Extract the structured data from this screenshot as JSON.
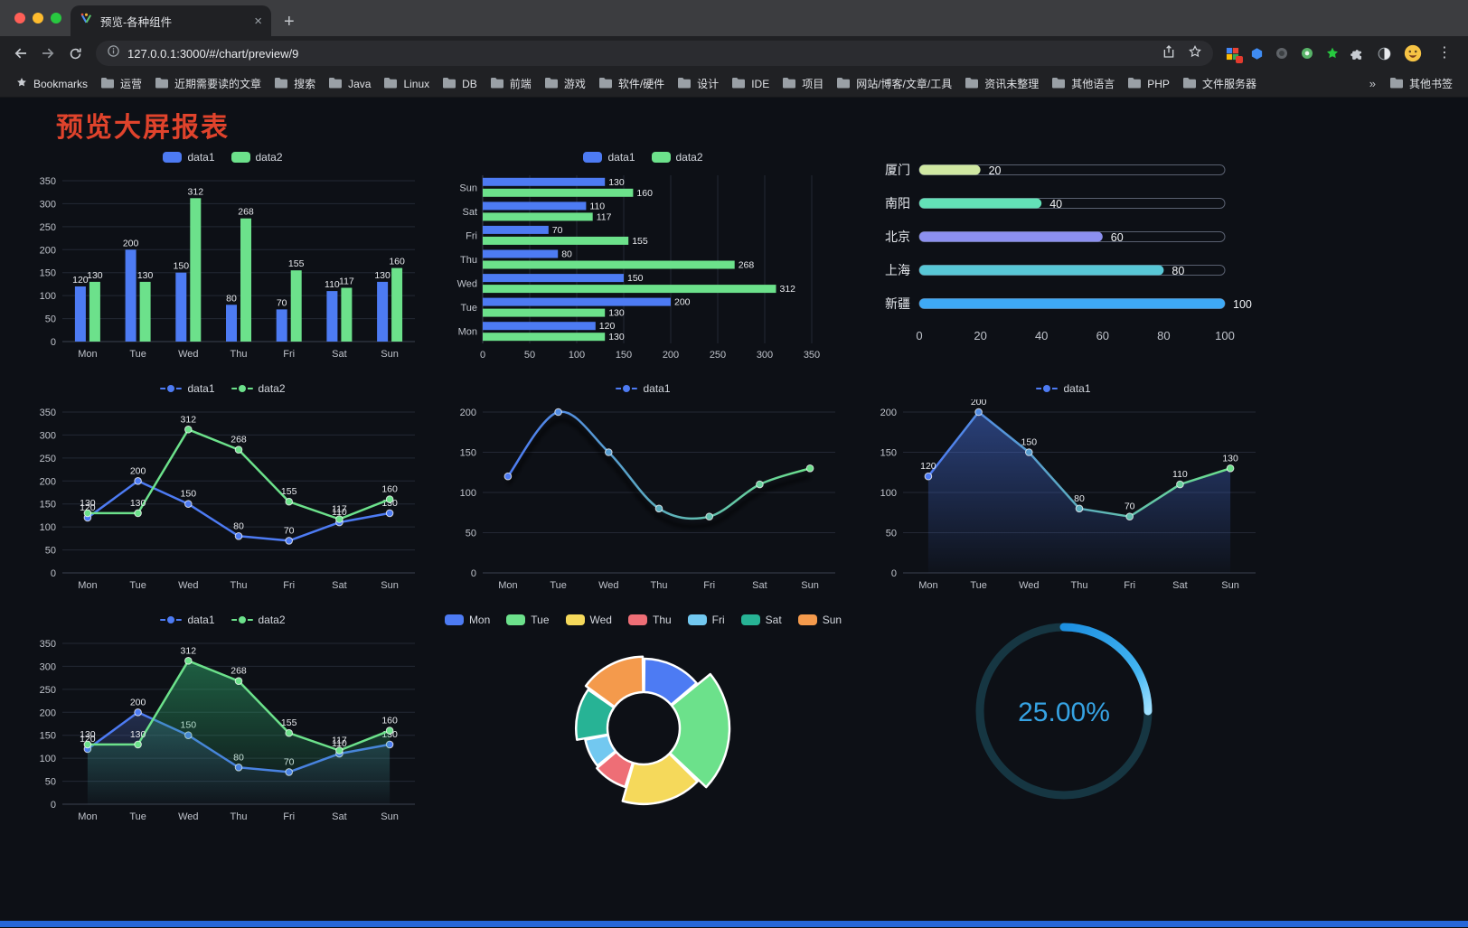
{
  "browser": {
    "tab": {
      "title": "预览-各种组件"
    },
    "glyphs": {
      "close": "×",
      "new_tab": "+",
      "more": "⋮",
      "overflow": "»"
    },
    "address": {
      "url": "127.0.0.1:3000/#/chart/preview/9"
    },
    "bookmarks_first": "Bookmarks",
    "bookmarks": [
      "运营",
      "近期需要读的文章",
      "搜索",
      "Java",
      "Linux",
      "DB",
      "前端",
      "游戏",
      "软件/硬件",
      "设计",
      "IDE",
      "项目",
      "网站/博客/文章/工具",
      "资讯未整理",
      "其他语言",
      "PHP",
      "文件服务器"
    ],
    "other_bookmarks": "其他书签"
  },
  "page": {
    "title": "预览大屏报表",
    "title_color": "#e0432c",
    "background": "#0d1016",
    "footer_color": "#2667d9"
  },
  "chart_data": [
    {
      "id": "grouped-bar",
      "type": "bar",
      "categories": [
        "Mon",
        "Tue",
        "Wed",
        "Thu",
        "Fri",
        "Sat",
        "Sun"
      ],
      "series": [
        {
          "name": "data1",
          "color": "#4d7bf3",
          "values": [
            120,
            200,
            150,
            80,
            70,
            110,
            130
          ]
        },
        {
          "name": "data2",
          "color": "#6ce18b",
          "values": [
            130,
            130,
            312,
            268,
            155,
            117,
            160
          ]
        }
      ],
      "ylim": [
        0,
        350
      ],
      "ystep": 50,
      "legend": true,
      "value_labels": true
    },
    {
      "id": "grouped-horizontal-bar",
      "type": "hbar",
      "categories": [
        "Mon",
        "Tue",
        "Wed",
        "Thu",
        "Fri",
        "Sat",
        "Sun"
      ],
      "series": [
        {
          "name": "data1",
          "color": "#4d7bf3",
          "values": [
            120,
            200,
            150,
            80,
            70,
            110,
            130
          ]
        },
        {
          "name": "data2",
          "color": "#6ce18b",
          "values": [
            130,
            130,
            312,
            268,
            155,
            117,
            160
          ]
        }
      ],
      "xlim": [
        0,
        350
      ],
      "xstep": 50,
      "legend": true,
      "value_labels": true
    },
    {
      "id": "capsule-bars",
      "type": "capsule",
      "max": 100,
      "rows": [
        {
          "label": "厦门",
          "value": 20,
          "color": "#d0e8a2"
        },
        {
          "label": "南阳",
          "value": 40,
          "color": "#63e2b7"
        },
        {
          "label": "北京",
          "value": 60,
          "color": "#8c90f0"
        },
        {
          "label": "上海",
          "value": 80,
          "color": "#58c7d6"
        },
        {
          "label": "新疆",
          "value": 100,
          "color": "#3ea9f5"
        }
      ],
      "xticks": [
        0,
        20,
        40,
        60,
        80,
        100
      ]
    },
    {
      "id": "two-line",
      "type": "line",
      "categories": [
        "Mon",
        "Tue",
        "Wed",
        "Thu",
        "Fri",
        "Sat",
        "Sun"
      ],
      "series": [
        {
          "name": "data1",
          "color": "#4d7bf3",
          "values": [
            120,
            200,
            150,
            80,
            70,
            110,
            130
          ]
        },
        {
          "name": "data2",
          "color": "#6ce18b",
          "values": [
            130,
            130,
            312,
            268,
            155,
            117,
            160
          ]
        }
      ],
      "ylim": [
        0,
        350
      ],
      "ystep": 50,
      "legend": true,
      "value_labels": true
    },
    {
      "id": "gradient-smooth-line",
      "type": "line",
      "categories": [
        "Mon",
        "Tue",
        "Wed",
        "Thu",
        "Fri",
        "Sat",
        "Sun"
      ],
      "series": [
        {
          "name": "data1",
          "color": "#4d7bf3",
          "gradient": [
            "#4d7bf3",
            "#6ce18b"
          ],
          "values": [
            120,
            200,
            150,
            80,
            70,
            110,
            130
          ],
          "smooth": true,
          "shadow": true
        }
      ],
      "ylim": [
        0,
        200
      ],
      "ystep": 50,
      "legend": true,
      "value_labels": false
    },
    {
      "id": "area-line",
      "type": "line",
      "categories": [
        "Mon",
        "Tue",
        "Wed",
        "Thu",
        "Fri",
        "Sat",
        "Sun"
      ],
      "series": [
        {
          "name": "data1",
          "color": "#4d7bf3",
          "gradient": [
            "#4d7bf3",
            "#6ce18b"
          ],
          "values": [
            120,
            200,
            150,
            80,
            70,
            110,
            130
          ],
          "area": "#4d7bf3",
          "area_op": 0.45
        }
      ],
      "ylim": [
        0,
        200
      ],
      "ystep": 50,
      "legend": true,
      "value_labels": true
    },
    {
      "id": "two-line-area",
      "type": "line",
      "categories": [
        "Mon",
        "Tue",
        "Wed",
        "Thu",
        "Fri",
        "Sat",
        "Sun"
      ],
      "series": [
        {
          "name": "data1",
          "color": "#4d7bf3",
          "values": [
            120,
            200,
            150,
            80,
            70,
            110,
            130
          ],
          "area": "#5a79d8",
          "area_op": 0.28
        },
        {
          "name": "data2",
          "color": "#6ce18b",
          "values": [
            130,
            130,
            312,
            268,
            155,
            117,
            160
          ],
          "area": "#2fae6e",
          "area_op": 0.5
        }
      ],
      "ylim": [
        0,
        350
      ],
      "ystep": 50,
      "legend": true,
      "value_labels": true
    },
    {
      "id": "rose-donut",
      "type": "pie",
      "rose": true,
      "items": [
        {
          "name": "Mon",
          "value": 120,
          "color": "#4d7bf3"
        },
        {
          "name": "Tue",
          "value": 200,
          "color": "#6ce18b"
        },
        {
          "name": "Wed",
          "value": 150,
          "color": "#f5d95b"
        },
        {
          "name": "Thu",
          "value": 80,
          "color": "#ee6e76"
        },
        {
          "name": "Fri",
          "value": 70,
          "color": "#72c8f0"
        },
        {
          "name": "Sat",
          "value": 110,
          "color": "#27b395"
        },
        {
          "name": "Sun",
          "value": 130,
          "color": "#f49a4c"
        }
      ]
    },
    {
      "id": "progress-gauge",
      "type": "gauge",
      "value": 25,
      "label": "25.00%",
      "color": "#36a3e3",
      "track": "#163642"
    }
  ]
}
